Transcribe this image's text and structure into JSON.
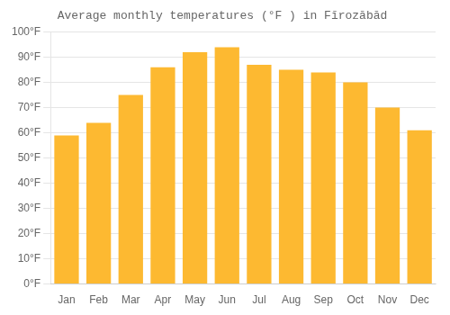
{
  "chart_data": {
    "type": "bar",
    "title": "Average monthly temperatures (°F ) in Fīrozābād",
    "categories": [
      "Jan",
      "Feb",
      "Mar",
      "Apr",
      "May",
      "Jun",
      "Jul",
      "Aug",
      "Sep",
      "Oct",
      "Nov",
      "Dec"
    ],
    "values": [
      59,
      64,
      75,
      86,
      92,
      94,
      87,
      85,
      84,
      80,
      70,
      61
    ],
    "color": "#FDB931",
    "ylim": [
      0,
      100
    ],
    "yticks": [
      {
        "value": 0,
        "label": "0°F"
      },
      {
        "value": 10,
        "label": "10°F"
      },
      {
        "value": 20,
        "label": "20°F"
      },
      {
        "value": 30,
        "label": "30°F"
      },
      {
        "value": 40,
        "label": "40°F"
      },
      {
        "value": 50,
        "label": "50°F"
      },
      {
        "value": 60,
        "label": "60°F"
      },
      {
        "value": 70,
        "label": "70°F"
      },
      {
        "value": 80,
        "label": "80°F"
      },
      {
        "value": 90,
        "label": "90°F"
      },
      {
        "value": 100,
        "label": "100°F"
      }
    ],
    "grid": true
  }
}
